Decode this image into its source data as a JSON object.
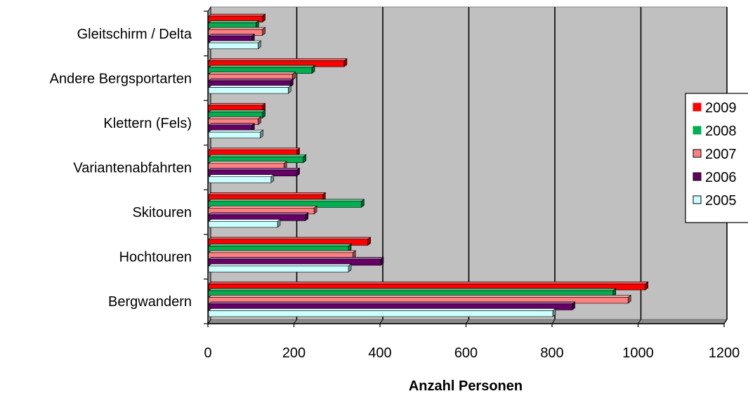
{
  "chart_data": {
    "type": "bar",
    "orientation": "horizontal",
    "style": "3d",
    "title": "",
    "xlabel": "Anzahl Personen",
    "ylabel": "",
    "xlim": [
      0,
      1200
    ],
    "xticks": [
      0,
      200,
      400,
      600,
      800,
      1000,
      1200
    ],
    "grid": true,
    "legend_position": "right",
    "categories": [
      "Gleitschirm / Delta",
      "Andere Bergsportarten",
      "Klettern (Fels)",
      "Variantenabfahrten",
      "Skitouren",
      "Hochtouren",
      "Bergwandern"
    ],
    "series": [
      {
        "name": "2009",
        "color": "#ff0000",
        "values": [
          125,
          315,
          125,
          205,
          265,
          370,
          1015
        ]
      },
      {
        "name": "2008",
        "color": "#00b050",
        "values": [
          110,
          240,
          125,
          220,
          355,
          325,
          940
        ]
      },
      {
        "name": "2007",
        "color": "#ff8080",
        "values": [
          125,
          195,
          115,
          175,
          245,
          335,
          975
        ]
      },
      {
        "name": "2006",
        "color": "#660066",
        "values": [
          100,
          190,
          100,
          205,
          225,
          400,
          845
        ]
      },
      {
        "name": "2005",
        "color": "#ccffff",
        "values": [
          115,
          185,
          120,
          145,
          160,
          325,
          800
        ]
      }
    ],
    "legend_order": [
      "2009",
      "2008",
      "2007",
      "2006",
      "2005"
    ]
  }
}
